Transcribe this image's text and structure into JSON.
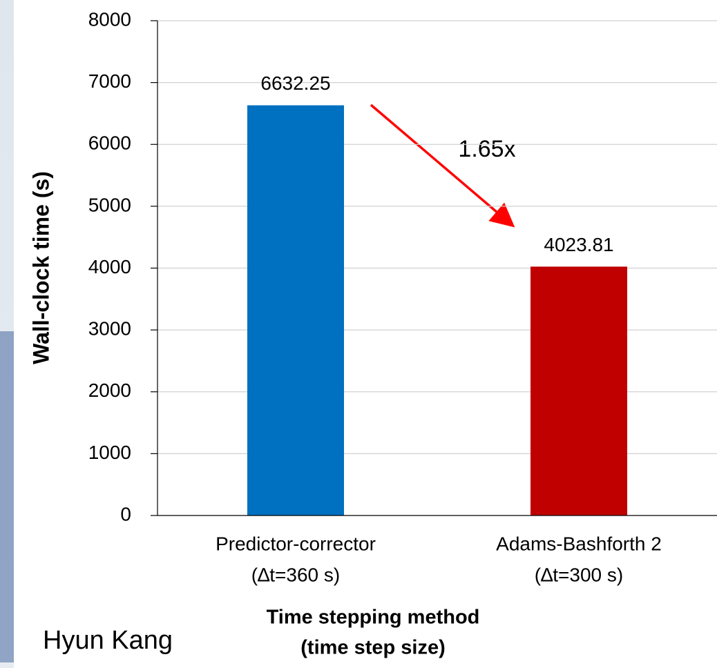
{
  "chart_data": {
    "type": "bar",
    "y_label": "Wall-clock time (s)",
    "x_label": [
      "Time stepping method",
      "(time step size)"
    ],
    "categories": [
      [
        "Predictor-corrector",
        "(∆t=360 s)"
      ],
      [
        "Adams-Bashforth 2",
        "(∆t=300 s)"
      ]
    ],
    "values": [
      6632.25,
      4023.81
    ],
    "colors": [
      "#0070c0",
      "#c00000"
    ],
    "ylim": [
      0,
      8000
    ],
    "yticks": [
      0,
      1000,
      2000,
      3000,
      4000,
      5000,
      6000,
      7000,
      8000
    ],
    "grid": true,
    "annotation": "1.65x",
    "annotation_color": "#ff0000"
  },
  "footer": {
    "author": "Hyun Kang"
  }
}
